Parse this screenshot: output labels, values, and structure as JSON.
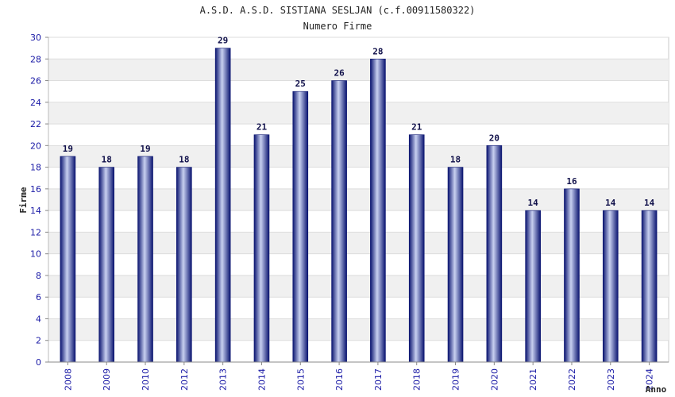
{
  "chart_data": {
    "type": "bar",
    "title": "A.S.D. A.S.D. SISTIANA SESLJAN (c.f.00911580322)",
    "subtitle": "Numero Firme",
    "xlabel": "Anno",
    "ylabel": "Firme",
    "ylim": [
      0,
      30
    ],
    "ytick_step": 2,
    "grid": true,
    "legend": "none",
    "categories": [
      "2008",
      "2009",
      "2010",
      "2012",
      "2013",
      "2014",
      "2015",
      "2016",
      "2017",
      "2018",
      "2019",
      "2020",
      "2021",
      "2022",
      "2023",
      "2024"
    ],
    "values": [
      19,
      18,
      19,
      18,
      29,
      21,
      25,
      26,
      28,
      21,
      18,
      20,
      14,
      16,
      14,
      14
    ],
    "colors": {
      "bar_dark": "#0a1470",
      "bar_light": "#c8d0f0",
      "tick_text": "#1a1aa6",
      "band": "#f0f0f0"
    }
  }
}
